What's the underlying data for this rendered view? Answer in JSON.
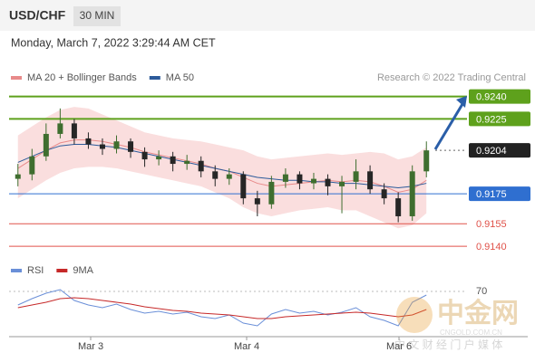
{
  "header": {
    "symbol": "USD/CHF",
    "timeframe": "30 MIN",
    "datetime": "Monday, March 7, 2022 3:29:44 AM CET"
  },
  "chart_data": [
    {
      "type": "candlestick",
      "credit": "Research © 2022 Trading Central",
      "ylim": [
        0.9134,
        0.9247
      ],
      "open": [
        0.9185,
        0.9188,
        0.92,
        0.9215,
        0.9222,
        0.9212,
        0.9208,
        0.9205,
        0.921,
        0.9203,
        0.9198,
        0.92,
        0.9195,
        0.9197,
        0.919,
        0.9185,
        0.9188,
        0.9172,
        0.9168,
        0.9183,
        0.9188,
        0.9182,
        0.9185,
        0.918,
        0.9183,
        0.919,
        0.9178,
        0.9172,
        0.916,
        0.919
      ],
      "high": [
        0.9195,
        0.9205,
        0.9222,
        0.9232,
        0.9225,
        0.9216,
        0.9212,
        0.9214,
        0.9212,
        0.9206,
        0.9204,
        0.9203,
        0.9201,
        0.92,
        0.9194,
        0.9192,
        0.919,
        0.9177,
        0.9187,
        0.9192,
        0.919,
        0.9189,
        0.9188,
        0.9187,
        0.9198,
        0.9194,
        0.9182,
        0.9176,
        0.9194,
        0.921
      ],
      "low": [
        0.918,
        0.9184,
        0.9197,
        0.9212,
        0.9208,
        0.9205,
        0.9201,
        0.9202,
        0.9199,
        0.9193,
        0.9194,
        0.919,
        0.9191,
        0.9186,
        0.918,
        0.9181,
        0.9168,
        0.916,
        0.9165,
        0.9179,
        0.9178,
        0.9178,
        0.9174,
        0.9162,
        0.9178,
        0.9175,
        0.9168,
        0.9156,
        0.9157,
        0.9186
      ],
      "close": [
        0.9188,
        0.92,
        0.9215,
        0.9222,
        0.9212,
        0.9208,
        0.9205,
        0.921,
        0.9203,
        0.9198,
        0.92,
        0.9195,
        0.9197,
        0.919,
        0.9185,
        0.9188,
        0.9172,
        0.9168,
        0.9183,
        0.9188,
        0.9182,
        0.9185,
        0.918,
        0.9183,
        0.919,
        0.9178,
        0.9172,
        0.916,
        0.919,
        0.9204
      ],
      "series": [
        {
          "name": "MA 20 + Bollinger Bands",
          "color": "#e88a8a",
          "values": [
            0.9192,
            0.9198,
            0.9204,
            0.9209,
            0.9211,
            0.9211,
            0.921,
            0.9208,
            0.9206,
            0.9203,
            0.9201,
            0.9199,
            0.9197,
            0.9195,
            0.9192,
            0.919,
            0.9186,
            0.9182,
            0.918,
            0.9181,
            0.9182,
            0.9183,
            0.9184,
            0.9183,
            0.9184,
            0.9183,
            0.918,
            0.9176,
            0.9178,
            0.9184
          ],
          "upper": [
            0.9214,
            0.922,
            0.9226,
            0.9231,
            0.9233,
            0.9232,
            0.9228,
            0.9224,
            0.922,
            0.9216,
            0.9214,
            0.9212,
            0.9211,
            0.921,
            0.9208,
            0.9206,
            0.9204,
            0.92,
            0.9198,
            0.9199,
            0.92,
            0.9201,
            0.9202,
            0.9201,
            0.9202,
            0.9203,
            0.9202,
            0.9198,
            0.92,
            0.9206
          ],
          "lower": [
            0.9172,
            0.9178,
            0.9184,
            0.9189,
            0.9192,
            0.9193,
            0.9193,
            0.9192,
            0.919,
            0.9188,
            0.9186,
            0.9184,
            0.9182,
            0.918,
            0.9176,
            0.9172,
            0.9166,
            0.9162,
            0.916,
            0.9162,
            0.9164,
            0.9165,
            0.9166,
            0.9164,
            0.9164,
            0.916,
            0.9156,
            0.9152,
            0.9154,
            0.9162
          ]
        },
        {
          "name": "MA 50",
          "color": "#2c5a9a",
          "values": [
            0.9196,
            0.92,
            0.9204,
            0.9207,
            0.9208,
            0.9208,
            0.9207,
            0.9206,
            0.9204,
            0.9202,
            0.92,
            0.9198,
            0.9196,
            0.9194,
            0.9192,
            0.919,
            0.9188,
            0.9186,
            0.9185,
            0.9184,
            0.9184,
            0.9183,
            0.9183,
            0.9182,
            0.9182,
            0.9181,
            0.918,
            0.9179,
            0.918,
            0.9182
          ]
        }
      ],
      "levels": [
        {
          "value": 0.924,
          "label": "0.9240",
          "color": "#5ea11c"
        },
        {
          "value": 0.9225,
          "label": "0.9225",
          "color": "#5ea11c"
        },
        {
          "value": 0.9204,
          "label": "0.9204",
          "color": "#222222"
        },
        {
          "value": 0.9175,
          "label": "0.9175",
          "color": "#2f6fd0"
        },
        {
          "value": 0.9155,
          "label": "0.9155",
          "color": "#e0524a"
        },
        {
          "value": 0.914,
          "label": "0.9140",
          "color": "#e0524a"
        }
      ],
      "x_labels": [
        "Mar 3",
        "Mar 4",
        "Mar 6"
      ]
    },
    {
      "type": "line",
      "ylim": [
        20,
        80
      ],
      "yticks": [
        70
      ],
      "series": [
        {
          "name": "RSI",
          "color": "#6a8fd8",
          "values": [
            55,
            62,
            68,
            72,
            60,
            55,
            52,
            56,
            50,
            46,
            48,
            45,
            47,
            42,
            40,
            44,
            35,
            32,
            45,
            50,
            46,
            48,
            44,
            47,
            52,
            42,
            38,
            32,
            58,
            66
          ]
        },
        {
          "name": "9MA",
          "color": "#c62828",
          "values": [
            52,
            55,
            58,
            62,
            63,
            62,
            60,
            58,
            56,
            53,
            51,
            49,
            48,
            46,
            45,
            44,
            42,
            40,
            40,
            42,
            43,
            44,
            45,
            46,
            47,
            46,
            44,
            42,
            44,
            50
          ]
        }
      ]
    }
  ],
  "watermark": {
    "brand": "中金网",
    "site": "CNGOLD.COM.CN",
    "slogan": "中 文 财 经 门 户 媒 体"
  }
}
